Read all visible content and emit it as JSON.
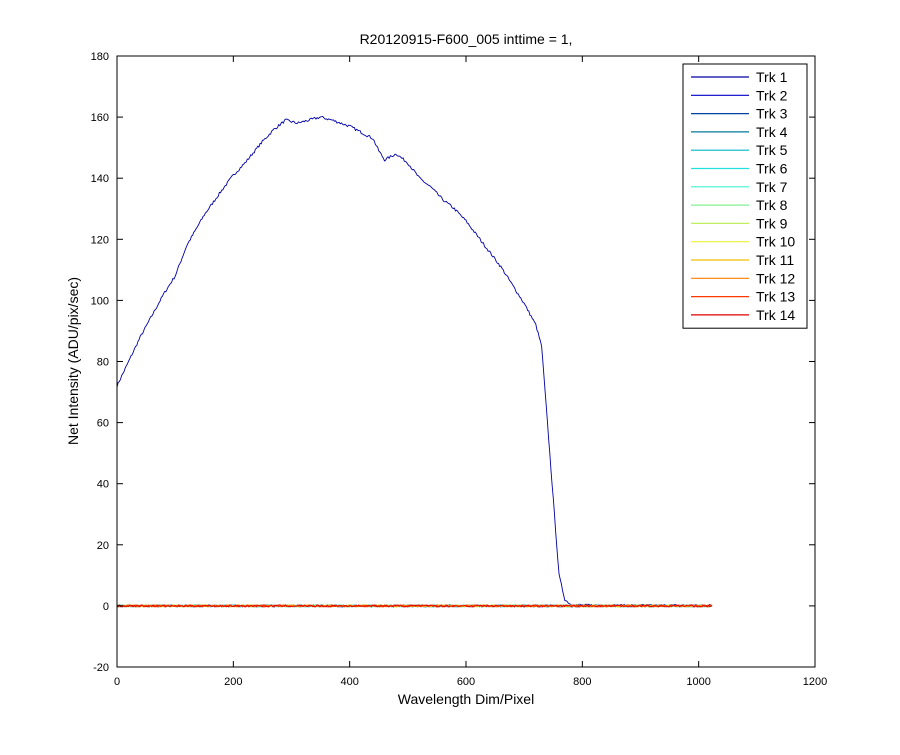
{
  "chart_data": {
    "type": "line",
    "title": "R20120915-F600_005 inttime = 1,",
    "xlabel": "Wavelength Dim/Pixel",
    "ylabel": "Net Intensity (ADU/pix/sec)",
    "xlim": [
      0,
      1200
    ],
    "ylim": [
      -20,
      180
    ],
    "xticks": [
      0,
      200,
      400,
      600,
      800,
      1000,
      1200
    ],
    "yticks": [
      -20,
      0,
      20,
      40,
      60,
      80,
      100,
      120,
      140,
      160,
      180
    ],
    "grid": false,
    "legend_position": "top-right",
    "series": [
      {
        "name": "Trk 1",
        "color": "#0000a8",
        "x": [
          0,
          20,
          40,
          60,
          80,
          100,
          120,
          150,
          180,
          200,
          220,
          250,
          270,
          290,
          310,
          330,
          350,
          370,
          400,
          420,
          440,
          450,
          460,
          480,
          500,
          520,
          540,
          560,
          580,
          600,
          620,
          640,
          660,
          680,
          700,
          720,
          730,
          740,
          750,
          760,
          770,
          780,
          800,
          900,
          1023
        ],
        "values": [
          72,
          80,
          88,
          95,
          102,
          108,
          118,
          128,
          136,
          141,
          145,
          152,
          156,
          159,
          158,
          159,
          160,
          159,
          157,
          155,
          153,
          149,
          146,
          148,
          145,
          140,
          137,
          133,
          130,
          126,
          121,
          116,
          111,
          105,
          99,
          92,
          85,
          60,
          35,
          10,
          2,
          0.5,
          0.3,
          0.2,
          0.2
        ]
      },
      {
        "name": "Trk 2",
        "color": "#0000c8",
        "x": [
          0,
          1023
        ],
        "values": [
          0,
          0
        ]
      },
      {
        "name": "Trk 3",
        "color": "#0040a0",
        "x": [
          0,
          1023
        ],
        "values": [
          0,
          0
        ]
      },
      {
        "name": "Trk 4",
        "color": "#007a9a",
        "x": [
          0,
          1023
        ],
        "values": [
          0,
          0
        ]
      },
      {
        "name": "Trk 5",
        "color": "#00b8c8",
        "x": [
          0,
          1023
        ],
        "values": [
          0,
          0
        ]
      },
      {
        "name": "Trk 6",
        "color": "#20e0e0",
        "x": [
          0,
          1023
        ],
        "values": [
          0,
          0
        ]
      },
      {
        "name": "Trk 7",
        "color": "#40f0d0",
        "x": [
          0,
          1023
        ],
        "values": [
          0,
          0
        ]
      },
      {
        "name": "Trk 8",
        "color": "#80f090",
        "x": [
          0,
          1023
        ],
        "values": [
          0,
          0
        ]
      },
      {
        "name": "Trk 9",
        "color": "#c0f060",
        "x": [
          0,
          1023
        ],
        "values": [
          0,
          0
        ]
      },
      {
        "name": "Trk 10",
        "color": "#f0f030",
        "x": [
          0,
          1023
        ],
        "values": [
          0,
          0
        ]
      },
      {
        "name": "Trk 11",
        "color": "#f0c000",
        "x": [
          0,
          1023
        ],
        "values": [
          0,
          0
        ]
      },
      {
        "name": "Trk 12",
        "color": "#ff8000",
        "x": [
          0,
          1023
        ],
        "values": [
          0,
          0
        ]
      },
      {
        "name": "Trk 13",
        "color": "#ff3800",
        "x": [
          0,
          1023
        ],
        "values": [
          0,
          0
        ]
      },
      {
        "name": "Trk 14",
        "color": "#e00000",
        "x": [
          0,
          1023
        ],
        "values": [
          0,
          0
        ]
      }
    ]
  }
}
